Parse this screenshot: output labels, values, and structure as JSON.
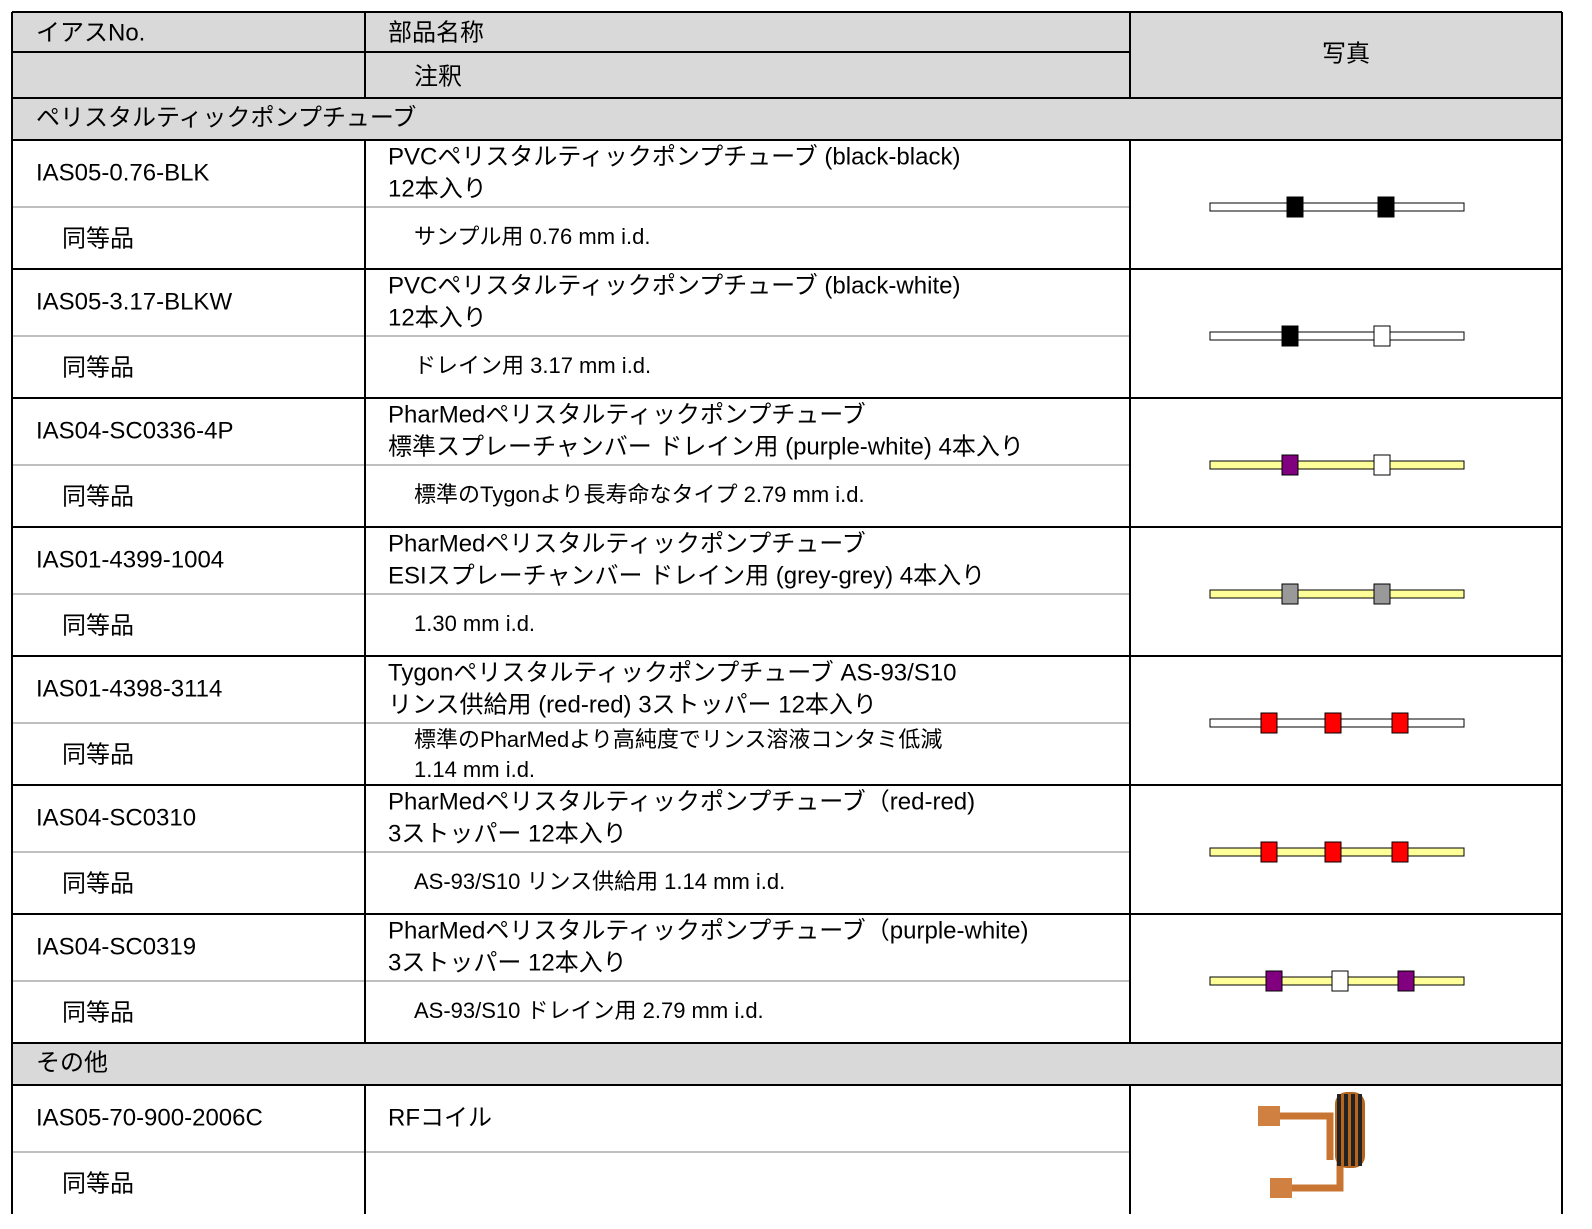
{
  "header": {
    "part_no": "イアスNo.",
    "name": "部品名称",
    "note": "注釈",
    "photo": "写真"
  },
  "sections": [
    {
      "title": "ペリスタルティックポンプチューブ",
      "items": [
        {
          "part_no": "IAS05-0.76-BLK",
          "equivalent": "同等品",
          "name": [
            "PVCペリスタルティックポンプチューブ (black-black)",
            "12本入り"
          ],
          "note": [
            "サンプル用 0.76 mm i.d."
          ]
        },
        {
          "part_no": "IAS05-3.17-BLKW",
          "equivalent": "同等品",
          "name": [
            "PVCペリスタルティックポンプチューブ (black-white)",
            "12本入り"
          ],
          "note": [
            "ドレイン用 3.17 mm i.d."
          ]
        },
        {
          "part_no": "IAS04-SC0336-4P",
          "equivalent": "同等品",
          "name": [
            "PharMedペリスタルティックポンプチューブ",
            "標準スプレーチャンバー ドレイン用 (purple-white) 4本入り"
          ],
          "note": [
            "標準のTygonより長寿命なタイプ  2.79 mm i.d."
          ]
        },
        {
          "part_no": "IAS01-4399-1004",
          "equivalent": "同等品",
          "name": [
            "PharMedペリスタルティックポンプチューブ",
            "ESIスプレーチャンバー ドレイン用  (grey-grey) 4本入り"
          ],
          "note": [
            "1.30 mm i.d."
          ]
        },
        {
          "part_no": "IAS01-4398-3114",
          "equivalent": "同等品",
          "name": [
            "Tygonペリスタルティックポンプチューブ AS-93/S10",
            "リンス供給用 (red-red) 3ストッパー 12本入り"
          ],
          "note": [
            "標準のPharMedより高純度でリンス溶液コンタミ低減",
            "1.14 mm i.d."
          ]
        },
        {
          "part_no": "IAS04-SC0310",
          "equivalent": "同等品",
          "name": [
            "PharMedペリスタルティックポンプチューブ（red-red)",
            "3ストッパー 12本入り"
          ],
          "note": [
            "AS-93/S10 リンス供給用 1.14 mm i.d."
          ]
        },
        {
          "part_no": "IAS04-SC0319",
          "equivalent": "同等品",
          "name": [
            "PharMedペリスタルティックポンプチューブ（purple-white)",
            "3ストッパー 12本入り"
          ],
          "note": [
            "AS-93/S10 ドレイン用 2.79 mm i.d."
          ]
        }
      ]
    },
    {
      "title": "その他",
      "items": [
        {
          "part_no": "IAS05-70-900-2006C",
          "equivalent": "同等品",
          "name": [
            "RFコイル"
          ]
        }
      ]
    }
  ]
}
